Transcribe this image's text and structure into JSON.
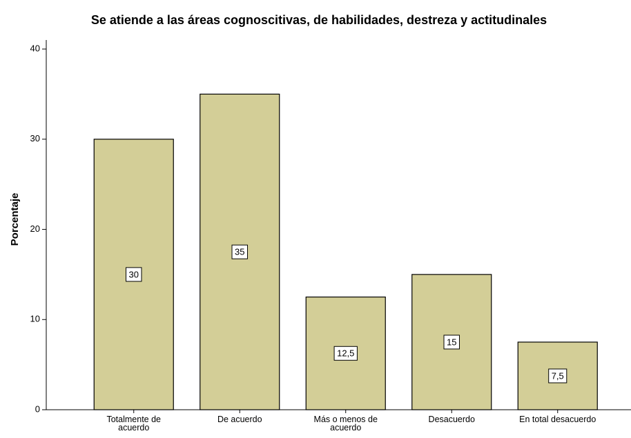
{
  "chart_data": {
    "type": "bar",
    "title": "Se atiende a las áreas cognoscitivas, de habilidades, destreza y actitudinales",
    "ylabel": "Porcentaje",
    "categories": [
      "Totalmente de acuerdo",
      "De acuerdo",
      "Más o menos de acuerdo",
      "Desacuerdo",
      "En total desacuerdo"
    ],
    "values": [
      30,
      35,
      12.5,
      15,
      7.5
    ],
    "value_labels": [
      "30",
      "35",
      "12,5",
      "15",
      "7,5"
    ],
    "color": "#d3ce97",
    "ylim": [
      0,
      41
    ],
    "yticks": [
      0,
      10,
      20,
      30,
      40
    ],
    "grid": false
  }
}
